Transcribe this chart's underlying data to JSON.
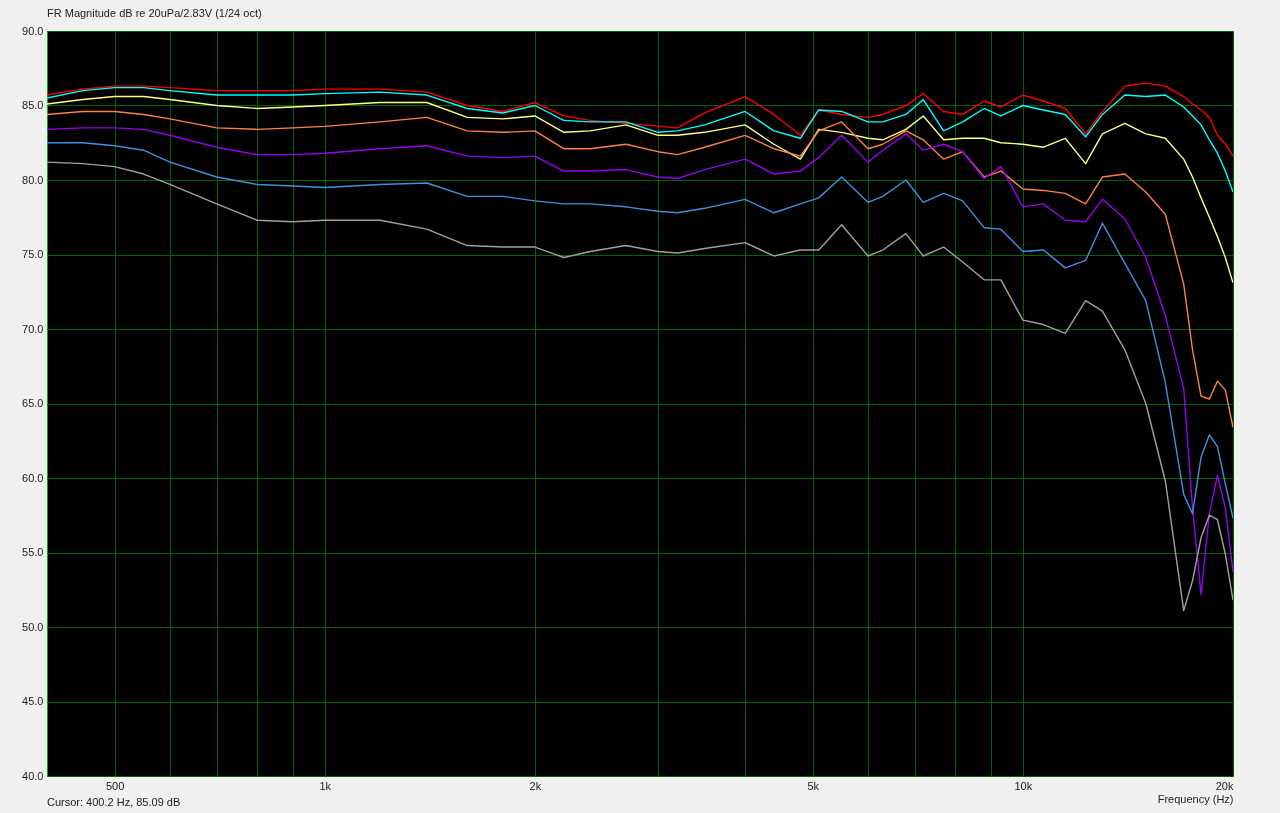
{
  "chart_data": {
    "type": "line",
    "title": "FR Magnitude dB re 20uPa/2.83V (1/24 oct)",
    "xlabel": "Frequency (Hz)",
    "annotations": [
      "Cursor: 400.2 Hz, 85.09 dB"
    ],
    "log": "x",
    "grid": true,
    "line_style": "solid",
    "xlim": [
      400,
      20000
    ],
    "ylim": [
      40,
      90
    ],
    "xticks": [
      {
        "value": 500,
        "label": "500"
      },
      {
        "value": 600,
        "label": null
      },
      {
        "value": 700,
        "label": null
      },
      {
        "value": 800,
        "label": null
      },
      {
        "value": 900,
        "label": null
      },
      {
        "value": 1000,
        "label": "1k"
      },
      {
        "value": 2000,
        "label": "2k"
      },
      {
        "value": 3000,
        "label": null
      },
      {
        "value": 4000,
        "label": null
      },
      {
        "value": 5000,
        "label": "5k"
      },
      {
        "value": 6000,
        "label": null
      },
      {
        "value": 7000,
        "label": null
      },
      {
        "value": 8000,
        "label": null
      },
      {
        "value": 9000,
        "label": null
      },
      {
        "value": 10000,
        "label": "10k"
      },
      {
        "value": 20000,
        "label": "20k"
      }
    ],
    "yticks": [
      {
        "value": 40,
        "label": "40.0"
      },
      {
        "value": 45,
        "label": "45.0"
      },
      {
        "value": 50,
        "label": "50.0"
      },
      {
        "value": 55,
        "label": "55.0"
      },
      {
        "value": 60,
        "label": "60.0"
      },
      {
        "value": 65,
        "label": "65.0"
      },
      {
        "value": 70,
        "label": "70.0"
      },
      {
        "value": 75,
        "label": "75.0"
      },
      {
        "value": 80,
        "label": "80.0"
      },
      {
        "value": 85,
        "label": "85.0"
      },
      {
        "value": 90,
        "label": "90.0"
      }
    ],
    "x": [
      400,
      450,
      500,
      550,
      600,
      700,
      800,
      900,
      1000,
      1200,
      1400,
      1600,
      1800,
      2000,
      2200,
      2400,
      2700,
      3000,
      3200,
      3500,
      4000,
      4400,
      4800,
      5100,
      5500,
      6000,
      6300,
      6800,
      7200,
      7700,
      8200,
      8800,
      9300,
      10000,
      10700,
      11500,
      12300,
      13000,
      14000,
      15000,
      16000,
      17000,
      17500,
      18000,
      18500,
      19000,
      19500,
      20000
    ],
    "series": [
      {
        "color": "#ff0000",
        "values": [
          85.7,
          86.1,
          86.3,
          86.3,
          86.2,
          86.0,
          86.0,
          86.0,
          86.1,
          86.1,
          85.9,
          85.0,
          84.6,
          85.2,
          84.3,
          84.0,
          null,
          null,
          83.5,
          84.5,
          85.6,
          84.4,
          83.0,
          84.7,
          84.4,
          84.2,
          84.4,
          85.0,
          85.8,
          84.6,
          84.4,
          85.3,
          84.9,
          85.7,
          85.3,
          84.8,
          83.1,
          84.6,
          86.3,
          86.5,
          86.3,
          85.6,
          85.1,
          84.7,
          84.2,
          83.0,
          82.4,
          81.6
        ]
      },
      {
        "color": "#00ffff",
        "values": [
          85.5,
          86.0,
          86.2,
          86.2,
          86.0,
          85.7,
          85.7,
          85.7,
          85.8,
          85.9,
          85.7,
          84.8,
          84.5,
          85.0,
          84.0,
          83.9,
          83.9,
          83.2,
          83.3,
          83.7,
          84.6,
          83.3,
          82.8,
          84.7,
          84.6,
          83.9,
          83.9,
          84.4,
          85.4,
          83.3,
          83.9,
          84.8,
          84.3,
          85.0,
          84.7,
          84.4,
          82.9,
          84.4,
          85.7,
          85.6,
          85.7,
          84.9,
          84.3,
          83.7,
          82.7,
          81.8,
          80.6,
          79.2
        ]
      },
      {
        "color": "#ffff80",
        "values": [
          85.1,
          85.4,
          85.6,
          85.6,
          85.4,
          85.0,
          84.8,
          84.9,
          85.0,
          85.2,
          85.2,
          84.2,
          84.1,
          84.3,
          83.2,
          83.3,
          83.7,
          83.0,
          83.0,
          83.2,
          83.7,
          82.4,
          81.4,
          83.4,
          83.2,
          82.8,
          82.7,
          83.4,
          84.3,
          82.7,
          82.8,
          82.8,
          82.5,
          82.4,
          82.2,
          82.8,
          81.1,
          83.1,
          83.8,
          83.1,
          82.8,
          81.4,
          80.2,
          78.8,
          77.5,
          76.2,
          74.8,
          73.1
        ]
      },
      {
        "color": "#ff8040",
        "values": [
          84.4,
          84.6,
          84.6,
          84.4,
          84.1,
          83.5,
          83.4,
          83.5,
          83.6,
          83.9,
          84.2,
          83.3,
          83.2,
          83.3,
          82.1,
          82.1,
          82.4,
          81.9,
          81.7,
          82.2,
          83.0,
          82.1,
          81.6,
          83.3,
          83.9,
          82.1,
          82.4,
          83.3,
          82.7,
          81.4,
          81.9,
          80.2,
          80.6,
          79.4,
          79.3,
          79.1,
          78.4,
          80.2,
          80.4,
          79.2,
          77.7,
          73.0,
          68.6,
          65.5,
          65.3,
          66.5,
          65.9,
          63.4
        ]
      },
      {
        "color": "#9900ee",
        "values": [
          83.4,
          83.5,
          83.5,
          83.4,
          83.0,
          82.2,
          81.7,
          81.7,
          81.8,
          82.1,
          82.3,
          81.6,
          81.5,
          81.6,
          80.6,
          80.6,
          80.7,
          80.2,
          80.1,
          80.7,
          81.4,
          80.4,
          80.6,
          81.5,
          83.0,
          81.2,
          82.0,
          83.1,
          82.0,
          82.4,
          81.9,
          80.1,
          80.9,
          78.2,
          78.4,
          77.3,
          77.2,
          78.7,
          77.4,
          74.8,
          70.9,
          66.0,
          58.0,
          52.2,
          57.6,
          60.2,
          58.0,
          53.7
        ]
      },
      {
        "color": "#4090e0",
        "values": [
          82.5,
          82.5,
          82.3,
          82.0,
          81.2,
          80.2,
          79.7,
          79.6,
          79.5,
          79.7,
          79.8,
          78.9,
          78.9,
          78.6,
          78.4,
          78.4,
          78.2,
          77.9,
          77.8,
          78.1,
          78.7,
          77.8,
          78.4,
          78.8,
          80.2,
          78.5,
          78.9,
          80.0,
          78.5,
          79.1,
          78.6,
          76.8,
          76.7,
          75.2,
          75.3,
          74.1,
          74.6,
          77.1,
          74.4,
          71.9,
          66.4,
          58.9,
          57.6,
          61.4,
          62.9,
          62.1,
          59.6,
          57.3
        ]
      },
      {
        "color": "#a0a0a0",
        "values": [
          81.2,
          81.1,
          80.9,
          80.4,
          79.7,
          78.4,
          77.3,
          77.2,
          77.3,
          77.3,
          76.7,
          75.6,
          75.5,
          75.5,
          74.8,
          75.2,
          75.6,
          75.2,
          75.1,
          75.4,
          75.8,
          74.9,
          75.3,
          75.3,
          77.0,
          74.9,
          75.3,
          76.4,
          74.9,
          75.5,
          74.5,
          73.3,
          73.3,
          70.6,
          70.3,
          69.7,
          71.9,
          71.2,
          68.6,
          65.0,
          59.8,
          51.1,
          53.1,
          56.0,
          57.5,
          57.2,
          54.9,
          51.8
        ]
      }
    ]
  }
}
